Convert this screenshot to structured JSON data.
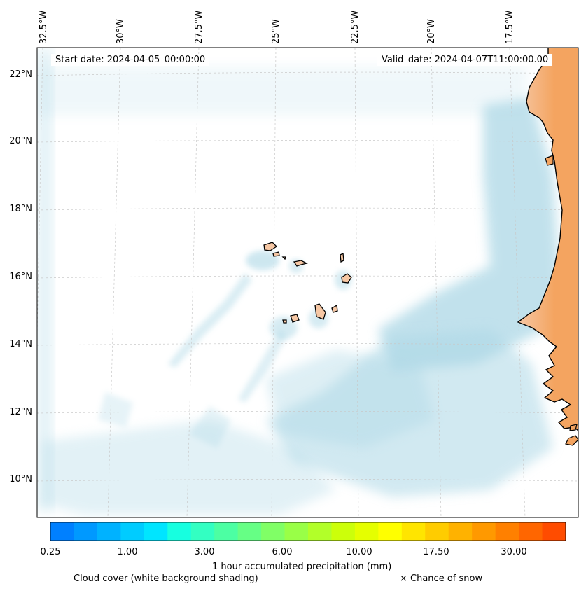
{
  "title": {
    "start_date": "Start date: 2024-04-05_00:00:00",
    "valid_date": "Valid_date: 2024-04-07T11:00:00.00"
  },
  "map": {
    "longitude_labels": [
      "32.5°W",
      "30°W",
      "27.5°W",
      "25°W",
      "22.5°W",
      "20°W",
      "17.5°W"
    ],
    "latitude_labels": [
      "22°N",
      "20°N",
      "18°N",
      "16°N",
      "14°N",
      "12°N",
      "10°N"
    ],
    "land_color": "#f4a460",
    "ocean_color": "#ffffff",
    "cloud_color": "#add8e6"
  },
  "colorbar": {
    "label": "1 hour accumulated precipitation (mm)",
    "tick_labels": [
      "0.25",
      "1.00",
      "3.00",
      "6.00",
      "10.00",
      "17.50",
      "30.00"
    ],
    "colors": [
      "#0080ff",
      "#0099ff",
      "#00b2ff",
      "#00ccff",
      "#00e5ff",
      "#17ffe0",
      "#33ffc2",
      "#4cffa3",
      "#66ff85",
      "#80ff66",
      "#99ff47",
      "#b2ff29",
      "#ccff0a",
      "#e5ff00",
      "#ffff00",
      "#ffe500",
      "#ffcc00",
      "#ffb200",
      "#ff9900",
      "#ff8000",
      "#ff6600",
      "#ff4c00"
    ]
  },
  "legend": {
    "cloud_cover": "Cloud cover (white background shading)",
    "snow": "× Chance of snow"
  }
}
